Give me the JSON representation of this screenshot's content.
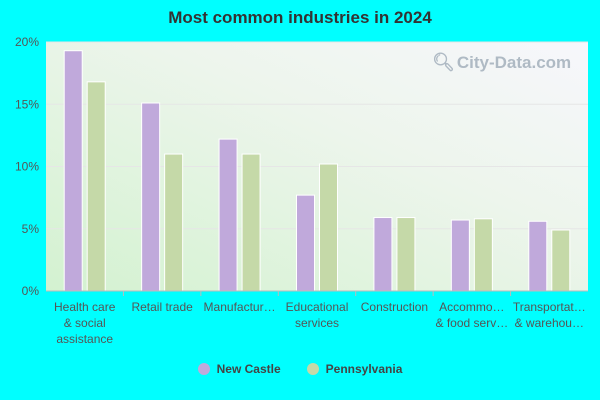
{
  "chart_data": {
    "type": "bar",
    "title": "Most common industries in 2024",
    "categories": [
      [
        "Health care",
        "& social",
        "assistance"
      ],
      [
        "Retail trade"
      ],
      [
        "Manufactur…"
      ],
      [
        "Educational",
        "services"
      ],
      [
        "Construction"
      ],
      [
        "Accommo…",
        "& food serv…"
      ],
      [
        "Transportat…",
        "& warehou…"
      ]
    ],
    "series": [
      {
        "name": "New Castle",
        "color": "#c0a9db",
        "values": [
          19.3,
          15.1,
          12.2,
          7.7,
          5.9,
          5.7,
          5.6
        ]
      },
      {
        "name": "Pennsylvania",
        "color": "#c5d9a8",
        "values": [
          16.8,
          11.0,
          11.0,
          10.2,
          5.9,
          5.8,
          4.9
        ]
      }
    ],
    "ylim": [
      0,
      20
    ],
    "yticks": [
      0,
      5,
      10,
      15,
      20
    ],
    "ytick_labels": [
      "0%",
      "5%",
      "10%",
      "15%",
      "20%"
    ],
    "grid": true,
    "legend_position": "bottom-center"
  },
  "watermark": "City-Data.com",
  "icons": {
    "watermark": "magnifier-icon"
  }
}
